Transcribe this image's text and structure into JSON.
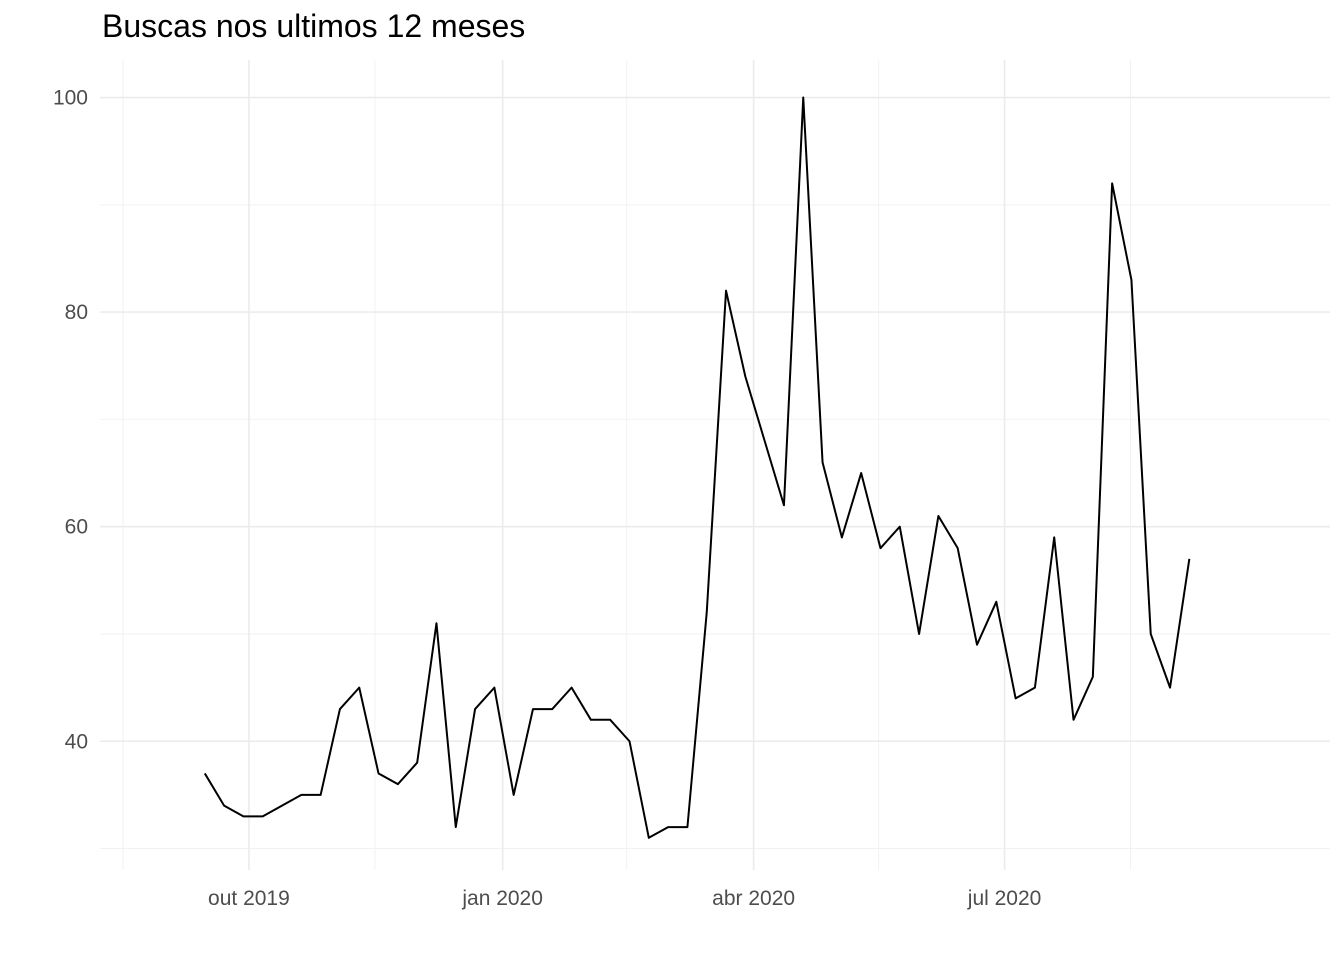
{
  "chart_data": {
    "type": "line",
    "title": "Buscas nos ultimos 12 meses",
    "xlabel": "",
    "ylabel": "",
    "grid": true,
    "x_ticks": [
      "2019-10-01",
      "2020-01-01",
      "2020-04-01",
      "2020-07-01"
    ],
    "x_tick_labels": [
      "out 2019",
      "jan 2020",
      "abr 2020",
      "jul 2020"
    ],
    "y_ticks": [
      40,
      60,
      80,
      100
    ],
    "xlim": [
      "2019-08-08",
      "2020-10-27"
    ],
    "ylim": [
      28,
      103.5
    ],
    "series": [
      {
        "x": [
          "2019-09-15",
          "2019-09-22",
          "2019-09-29",
          "2019-10-06",
          "2019-10-13",
          "2019-10-20",
          "2019-10-27",
          "2019-11-03",
          "2019-11-10",
          "2019-11-17",
          "2019-11-24",
          "2019-12-01",
          "2019-12-08",
          "2019-12-15",
          "2019-12-22",
          "2019-12-29",
          "2020-01-05",
          "2020-01-12",
          "2020-01-19",
          "2020-01-26",
          "2020-02-02",
          "2020-02-09",
          "2020-02-16",
          "2020-02-23",
          "2020-03-01",
          "2020-03-08",
          "2020-03-15",
          "2020-03-22",
          "2020-03-29",
          "2020-04-05",
          "2020-04-12",
          "2020-04-19",
          "2020-04-26",
          "2020-05-03",
          "2020-05-10",
          "2020-05-17",
          "2020-05-24",
          "2020-05-31",
          "2020-06-07",
          "2020-06-14",
          "2020-06-21",
          "2020-06-28",
          "2020-07-05",
          "2020-07-12",
          "2020-07-19",
          "2020-07-26",
          "2020-08-02",
          "2020-08-09",
          "2020-08-16",
          "2020-08-23",
          "2020-08-30",
          "2020-09-06"
        ],
        "values": [
          37,
          34,
          33,
          33,
          34,
          35,
          35,
          43,
          45,
          37,
          36,
          38,
          51,
          32,
          43,
          45,
          35,
          43,
          43,
          45,
          42,
          42,
          40,
          31,
          32,
          32,
          52,
          82,
          74,
          68,
          62,
          100,
          66,
          59,
          65,
          58,
          60,
          50,
          61,
          58,
          49,
          53,
          44,
          45,
          59,
          42,
          46,
          92,
          83,
          50,
          45,
          57
        ]
      }
    ]
  }
}
